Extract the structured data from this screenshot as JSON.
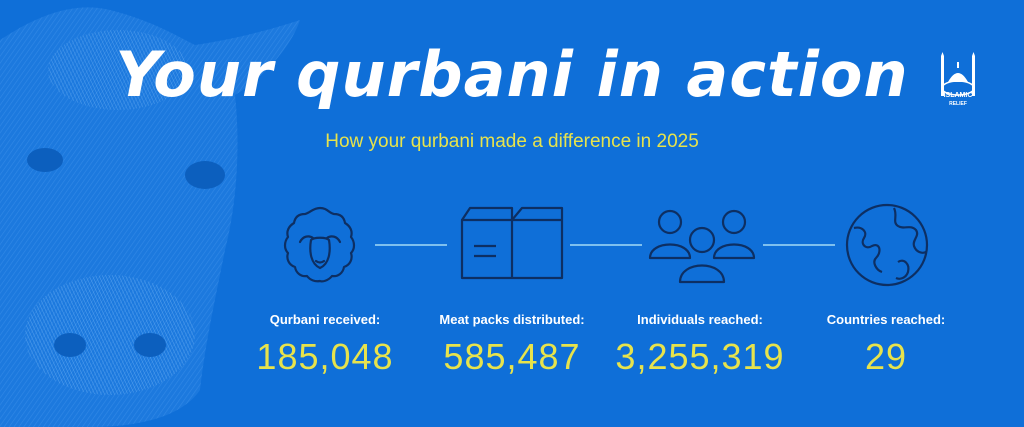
{
  "header": {
    "title": "Your qurbani in action",
    "subtitle": "How your qurbani made a difference in 2025"
  },
  "logo": {
    "line1": "ISLAMIC",
    "line2": "RELIEF"
  },
  "stats": [
    {
      "label": "Qurbani received:",
      "value": "185,048",
      "icon": "sheep-icon"
    },
    {
      "label": "Meat packs distributed:",
      "value": "585,487",
      "icon": "box-icon"
    },
    {
      "label": "Individuals reached:",
      "value": "3,255,319",
      "icon": "people-icon"
    },
    {
      "label": "Countries reached:",
      "value": "29",
      "icon": "globe-icon"
    }
  ],
  "colors": {
    "background": "#0f6fd8",
    "accent": "#e7e34c",
    "text": "#ffffff",
    "connector": "#7ec0ef",
    "icon_stroke": "#0d2f63"
  }
}
